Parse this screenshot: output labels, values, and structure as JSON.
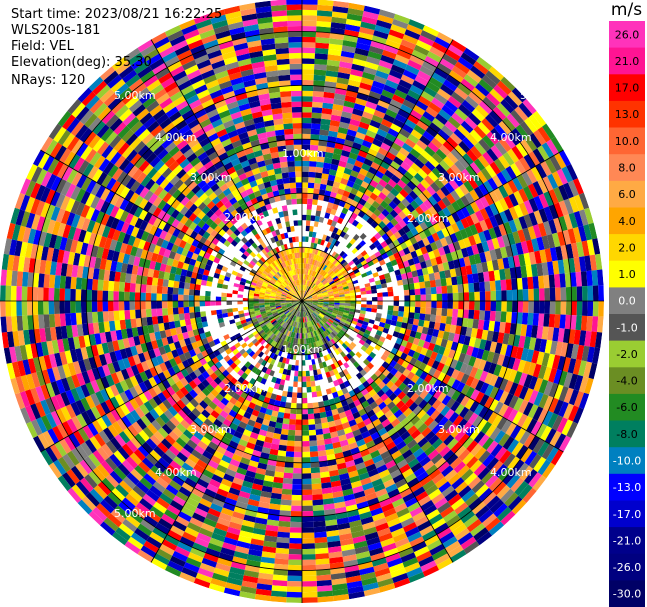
{
  "header": {
    "start_time": "Start time: 2023/08/21 16:22:25",
    "instrument": "WLS200s-181",
    "field": "Field: VEL",
    "elevation": "Elevation(deg): 35.30",
    "nrays": "NRays: 120"
  },
  "colorbar": {
    "unit": "m/s",
    "ticks": [
      "26.0",
      "21.0",
      "17.0",
      "13.0",
      "10.0",
      "8.0",
      "6.0",
      "4.0",
      "2.0",
      "1.0",
      "0.0",
      "-1.0",
      "-2.0",
      "-4.0",
      "-6.0",
      "-8.0",
      "-10.0",
      "-13.0",
      "-17.0",
      "-21.0",
      "-26.0",
      "-30.0"
    ],
    "colors": [
      "#ff33bb",
      "#ff1493",
      "#ff0000",
      "#ff3300",
      "#ff6633",
      "#ff8855",
      "#ffaa44",
      "#ffa500",
      "#ffd700",
      "#ffff00",
      "#808080",
      "#555555",
      "#9acd32",
      "#6b8e23",
      "#228b22",
      "#007f5f",
      "#0080c0",
      "#0000ff",
      "#0000cd",
      "#00008b",
      "#000080",
      "#000066"
    ]
  },
  "chart_data": {
    "type": "heatmap",
    "subtype": "radar_ppi",
    "field": "VEL",
    "units": "m/s",
    "nrays": 120,
    "elevation_deg": 35.3,
    "range_rings_label": [
      "1.00km",
      "2.00km",
      "3.00km",
      "4.00km",
      "5.00km"
    ],
    "ring_label_text": [
      "1.00km",
      "2.00km",
      "2.00km",
      "3.00km",
      "3.00km",
      "4.00km",
      "4.00km",
      "5.00km",
      "5.00km",
      "1.00km",
      "2.00km",
      "2.00km",
      "3.00km",
      "3.00km",
      "4.00km",
      "4.00km",
      "5.00km"
    ],
    "colormap_bounds": [
      -30,
      -26,
      -21,
      -17,
      -13,
      -10,
      -8,
      -6,
      -4,
      -2,
      -1,
      0,
      1,
      2,
      4,
      6,
      8,
      10,
      13,
      17,
      21,
      26,
      30
    ],
    "near_field": "positive (yellow-orange) to north, negative (green) to south within ~1 km",
    "far_field": "noise: random colors across full velocity range"
  }
}
